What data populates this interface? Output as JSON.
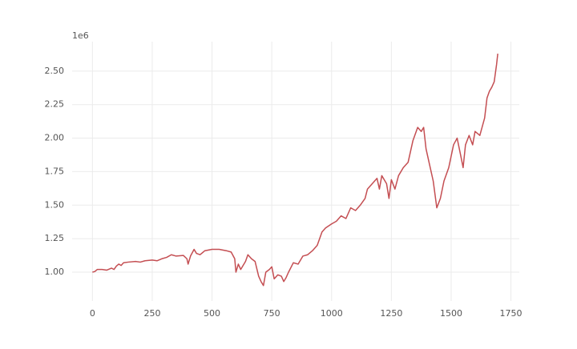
{
  "chart_data": {
    "type": "line",
    "offset_label": "1e6",
    "x": [
      0,
      10,
      20,
      40,
      60,
      80,
      90,
      100,
      110,
      120,
      130,
      150,
      180,
      200,
      220,
      250,
      270,
      290,
      310,
      330,
      350,
      380,
      395,
      400,
      410,
      425,
      435,
      450,
      470,
      500,
      530,
      560,
      580,
      595,
      600,
      610,
      620,
      640,
      650,
      665,
      680,
      695,
      705,
      715,
      725,
      740,
      750,
      760,
      775,
      790,
      800,
      810,
      820,
      840,
      860,
      880,
      900,
      920,
      940,
      960,
      975,
      1000,
      1020,
      1040,
      1060,
      1080,
      1100,
      1120,
      1140,
      1150,
      1170,
      1190,
      1200,
      1210,
      1230,
      1240,
      1250,
      1265,
      1280,
      1300,
      1320,
      1340,
      1360,
      1375,
      1385,
      1395,
      1410,
      1425,
      1440,
      1455,
      1470,
      1490,
      1510,
      1525,
      1540,
      1550,
      1560,
      1575,
      1590,
      1600,
      1620,
      1640,
      1650,
      1660,
      1670,
      1680,
      1690,
      1695
    ],
    "series": [
      {
        "color": "#c44e52",
        "values": [
          1.0,
          1.005,
          1.02,
          1.02,
          1.015,
          1.03,
          1.02,
          1.045,
          1.06,
          1.05,
          1.07,
          1.075,
          1.08,
          1.075,
          1.085,
          1.09,
          1.085,
          1.1,
          1.11,
          1.13,
          1.12,
          1.125,
          1.1,
          1.06,
          1.12,
          1.17,
          1.14,
          1.13,
          1.16,
          1.17,
          1.17,
          1.16,
          1.15,
          1.1,
          1.0,
          1.06,
          1.02,
          1.08,
          1.13,
          1.1,
          1.08,
          0.97,
          0.93,
          0.9,
          1.0,
          1.02,
          1.04,
          0.95,
          0.98,
          0.97,
          0.93,
          0.96,
          1.0,
          1.07,
          1.06,
          1.12,
          1.13,
          1.16,
          1.2,
          1.3,
          1.33,
          1.36,
          1.38,
          1.42,
          1.4,
          1.48,
          1.46,
          1.5,
          1.55,
          1.62,
          1.66,
          1.7,
          1.62,
          1.72,
          1.66,
          1.55,
          1.69,
          1.62,
          1.72,
          1.78,
          1.82,
          1.98,
          2.08,
          2.05,
          2.08,
          1.92,
          1.8,
          1.68,
          1.48,
          1.55,
          1.68,
          1.78,
          1.95,
          2.0,
          1.87,
          1.78,
          1.95,
          2.02,
          1.95,
          2.05,
          2.02,
          2.15,
          2.3,
          2.35,
          2.38,
          2.42,
          2.55,
          2.63
        ]
      }
    ],
    "xlim": [
      -85,
      1785
    ],
    "xticks": [
      0,
      250,
      500,
      750,
      1000,
      1250,
      1500,
      1750
    ],
    "ylim": [
      0.785,
      2.72
    ],
    "yticks": [
      {
        "value": 1,
        "label": "1.00"
      },
      {
        "value": 1.25,
        "label": "1.25"
      },
      {
        "value": 1.5,
        "label": "1.50"
      },
      {
        "value": 1.75,
        "label": "1.75"
      },
      {
        "value": 2,
        "label": "2.00"
      },
      {
        "value": 2.25,
        "label": "2.25"
      },
      {
        "value": 2.5,
        "label": "2.50"
      }
    ],
    "grid": true
  }
}
